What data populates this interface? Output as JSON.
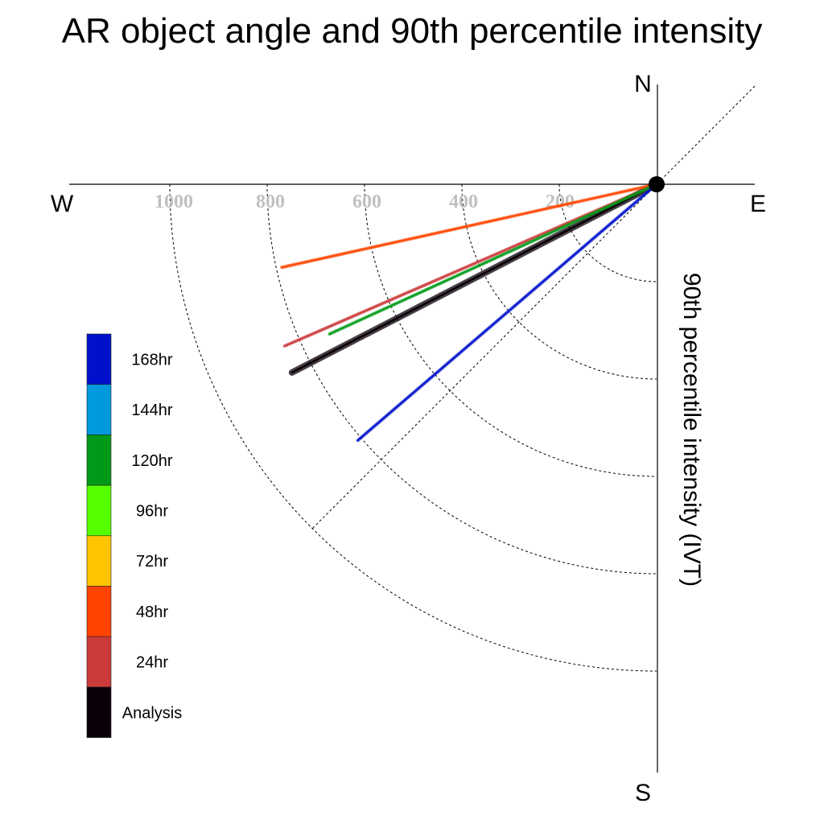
{
  "chart_data": {
    "type": "scatter",
    "title": "AR object angle and 90th percentile intensity",
    "ylabel": "90th percentile intensity (IVT)",
    "directions": {
      "north": "N",
      "south": "S",
      "east": "E",
      "west": "W"
    },
    "radial_ticks": [
      "200",
      "400",
      "600",
      "800",
      "1000"
    ],
    "radial_tick_values": [
      200,
      400,
      600,
      800,
      1000
    ],
    "rlim": [
      0,
      1000
    ],
    "grid": true,
    "legend_position": "left",
    "series": [
      {
        "name": "Analysis",
        "color": "#0a0008",
        "angle_deg": -27.3,
        "intensity": 850,
        "width": 8
      },
      {
        "name": "24hr",
        "color": "#cc3a3a",
        "angle_deg": -23.5,
        "intensity": 840,
        "width": 4
      },
      {
        "name": "48hr",
        "color": "#ff4400",
        "angle_deg": -12.5,
        "intensity": 795,
        "width": 4
      },
      {
        "name": "120hr",
        "color": "#009a18",
        "angle_deg": -24.6,
        "intensity": 745,
        "width": 4
      },
      {
        "name": "168hr",
        "color": "#0011cc",
        "angle_deg": -40.6,
        "intensity": 815,
        "width": 4
      }
    ],
    "legend": [
      {
        "label": "168hr",
        "color": "#0011cc"
      },
      {
        "label": "144hr",
        "color": "#0099dd"
      },
      {
        "label": "120hr",
        "color": "#009a18"
      },
      {
        "label": "96hr",
        "color": "#55ff00"
      },
      {
        "label": "72hr",
        "color": "#ffc400"
      },
      {
        "label": "48hr",
        "color": "#ff4400"
      },
      {
        "label": "24hr",
        "color": "#cc3a3a"
      },
      {
        "label": "Analysis",
        "color": "#0a0008"
      }
    ]
  }
}
